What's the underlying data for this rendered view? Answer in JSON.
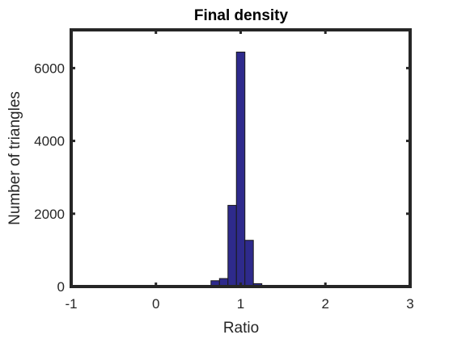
{
  "chart_data": {
    "type": "bar",
    "title": "Final density",
    "xlabel": "Ratio",
    "ylabel": "Number of triangles",
    "xlim": [
      -1,
      3
    ],
    "ylim": [
      0,
      7050
    ],
    "xticks": [
      -1,
      0,
      1,
      2,
      3
    ],
    "xtick_labels": [
      "-1",
      "0",
      "1",
      "2",
      "3"
    ],
    "yticks": [
      0,
      2000,
      4000,
      6000
    ],
    "ytick_labels": [
      "0",
      "2000",
      "4000",
      "6000"
    ],
    "bin_edges": [
      0.65,
      0.75,
      0.85,
      0.95,
      1.05,
      1.15,
      1.25
    ],
    "counts": [
      160,
      220,
      2230,
      6440,
      1270,
      80
    ],
    "bar_color": "#2e2a8c",
    "bar_edge_color": "#1a1a1a",
    "grid": false
  }
}
